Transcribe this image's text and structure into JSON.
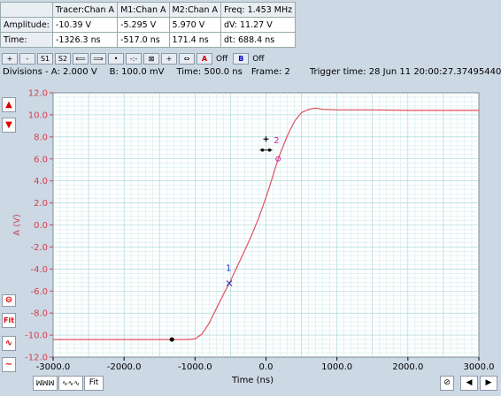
{
  "readout": {
    "headers": [
      "",
      "Tracer:Chan A",
      "M1:Chan A",
      "M2:Chan A",
      "Freq: 1.453 MHz"
    ],
    "rows": [
      [
        "Amplitude:",
        "-10.39 V",
        "-5.295 V",
        "5.970 V",
        "dV: 11.27 V"
      ],
      [
        "Time:",
        "-1326.3 ns",
        "-517.0 ns",
        "171.4 ns",
        "dt: 688.4 ns"
      ]
    ]
  },
  "toolbar": {
    "buttons": [
      "+",
      "-",
      "S1",
      "S2",
      "⟸",
      "⟹",
      "•",
      "-:-",
      "⊠",
      "+",
      "⇔"
    ],
    "chan_a_label": "A",
    "chan_a_state": "Off",
    "chan_b_label": "B",
    "chan_b_state": "Off"
  },
  "info": {
    "divisions": "Divisions -  A: 2.000 V",
    "b_div": "B: 100.0 mV",
    "time_div": "Time: 500.0 ns",
    "frame": "Frame: 2",
    "trigger": "Trigger time: 28 Jun 11 20:00:27.374954400"
  },
  "side_buttons": {
    "up": "▲",
    "down": "▼",
    "zero": "⊖",
    "fit": "Fit",
    "wave1": "∿",
    "wave2": "∼"
  },
  "bottom_buttons": {
    "wave_a": "ꟽꟽꟽ",
    "wave_b": "∿∿∿",
    "fit": "Fit",
    "lock": "⊘",
    "left": "◀",
    "right": "▶"
  },
  "chart_data": {
    "type": "line",
    "xlabel": "Time (ns)",
    "ylabel": "A (V)",
    "xlim": [
      -3000,
      3000
    ],
    "ylim": [
      -12,
      12
    ],
    "x_ticks": [
      "-3000.0",
      "-2000.0",
      "-1000.0",
      "0.0",
      "1000.0",
      "2000.0",
      "3000.0"
    ],
    "y_ticks": [
      "12.0",
      "10.0",
      "8.0",
      "6.0",
      "4.0",
      "2.0",
      "0.0",
      "-2.0",
      "-4.0",
      "-6.0",
      "-8.0",
      "-10.0",
      "-12.0"
    ],
    "grid": true,
    "series": [
      {
        "color": "#e05060",
        "x": [
          -3000,
          -1100,
          -1000,
          -900,
          -800,
          -700,
          -600,
          -517,
          -400,
          -300,
          -200,
          -100,
          0,
          100,
          171,
          300,
          400,
          500,
          600,
          700,
          800,
          1000,
          1500,
          2000,
          2500,
          3000
        ],
        "y": [
          -10.4,
          -10.4,
          -10.35,
          -9.9,
          -8.9,
          -7.6,
          -6.3,
          -5.3,
          -3.7,
          -2.3,
          -0.9,
          0.7,
          2.5,
          4.5,
          6.0,
          8.1,
          9.4,
          10.2,
          10.5,
          10.6,
          10.5,
          10.45,
          10.45,
          10.4,
          10.4,
          10.4
        ]
      }
    ],
    "markers": [
      {
        "label": "1",
        "x": -517,
        "y": -5.3,
        "color": "#2233bb"
      },
      {
        "label": "2",
        "x": 171,
        "y": 6.0,
        "color": "#cc22aa"
      }
    ],
    "tracer_point": {
      "x": -1326,
      "y": -10.4
    }
  }
}
